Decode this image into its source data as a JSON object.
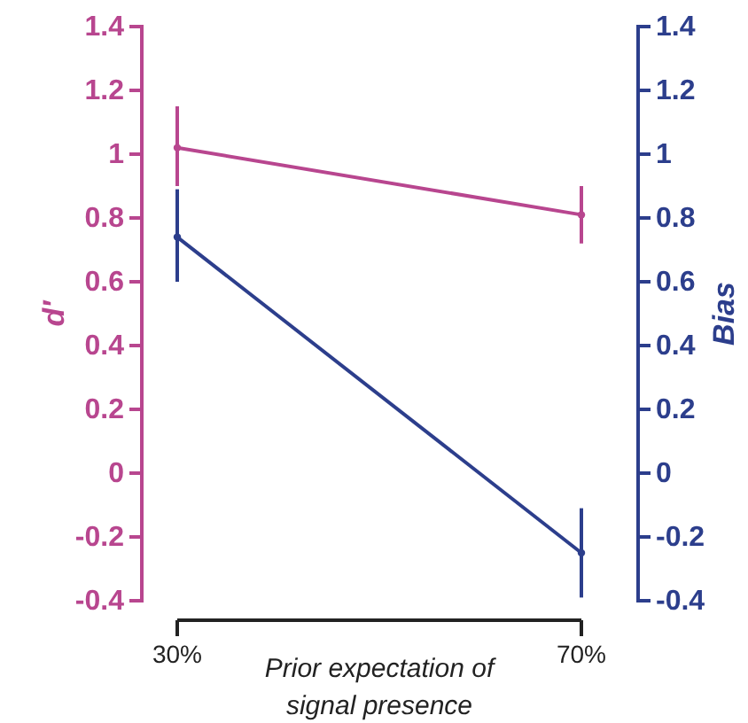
{
  "chart_data": {
    "type": "line",
    "xlabel": "Prior expectation of signal presence",
    "ylabel": "d′",
    "y2label": "Bias",
    "categories": [
      "30%",
      "70%"
    ],
    "series": [
      {
        "color": "#b8468f",
        "values": [
          1.02,
          0.81
        ],
        "errors": [
          [
            0.9,
            1.15
          ],
          [
            0.72,
            0.9
          ]
        ]
      },
      {
        "color": "#2c3e8c",
        "axis": "y2",
        "values": [
          0.74,
          -0.25
        ],
        "errors": [
          [
            0.6,
            0.89
          ],
          [
            -0.39,
            -0.11
          ]
        ]
      }
    ],
    "ylim": [
      -0.4,
      1.4
    ],
    "yticks": [
      -0.4,
      -0.2,
      0,
      0.2,
      0.4,
      0.6,
      0.8,
      1,
      1.2,
      1.4
    ],
    "y2lim": [
      -0.4,
      1.4
    ],
    "y2ticks": [
      -0.4,
      -0.2,
      0,
      0.2,
      0.4,
      0.6,
      0.8,
      1,
      1.2,
      1.4
    ],
    "marker": "circle",
    "line_style": "solid"
  }
}
